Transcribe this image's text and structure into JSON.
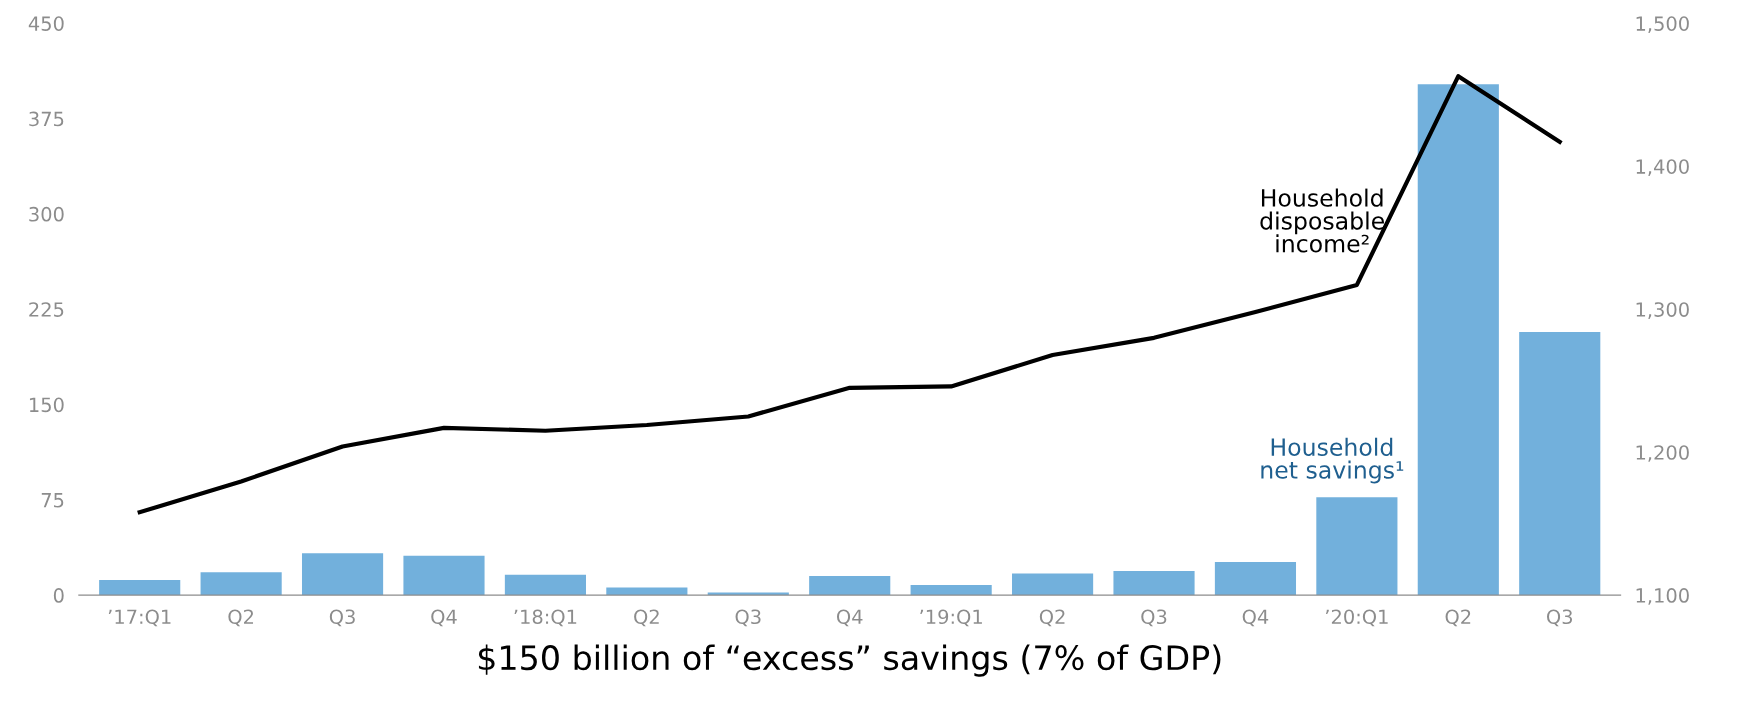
{
  "chart_data": {
    "type": "bar",
    "xlabel": "$150 billion of “excess” savings (7% of GDP)",
    "categories": [
      "’17:Q1",
      "Q2",
      "Q3",
      "Q4",
      "’18:Q1",
      "Q2",
      "Q3",
      "Q4",
      "’19:Q1",
      "Q2",
      "Q3",
      "Q4",
      "’20:Q1",
      "Q2",
      "Q3"
    ],
    "series": [
      {
        "name": "Household net savings¹",
        "color": "#72b0dc",
        "values": [
          12,
          18,
          33,
          31,
          16,
          6,
          2,
          15,
          8,
          17,
          19,
          26,
          77,
          402,
          207
        ]
      },
      {
        "name": "Household disposable income²",
        "type": "line",
        "axis": "y2",
        "color": "#000000",
        "values": [
          1158,
          1179.5,
          1204,
          1217,
          1215,
          1219,
          1225,
          1245,
          1246,
          1268,
          1280,
          1298,
          1317,
          1463,
          1417
        ]
      }
    ],
    "ylim": [
      0,
      450
    ],
    "yticks": [
      0,
      75,
      150,
      225,
      300,
      375,
      450
    ],
    "y2lim": [
      1100,
      1500
    ],
    "y2ticks": [
      {
        "value": 1100,
        "label": "1,100"
      },
      {
        "value": 1200,
        "label": "1,200"
      },
      {
        "value": 1300,
        "label": "1,300"
      },
      {
        "value": 1400,
        "label": "1,400"
      },
      {
        "value": 1500,
        "label": "1,500"
      }
    ],
    "grid": false,
    "legend": false,
    "marker": "none",
    "line_style": "solid"
  }
}
